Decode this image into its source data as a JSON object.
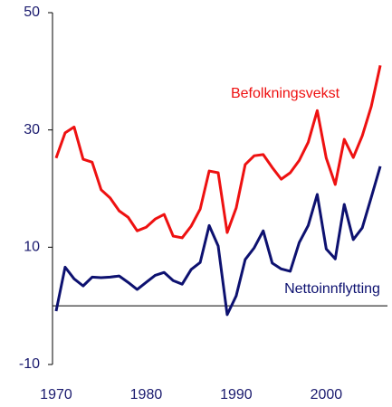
{
  "chart_data": {
    "type": "line",
    "x": [
      1970,
      1971,
      1972,
      1973,
      1974,
      1975,
      1976,
      1977,
      1978,
      1979,
      1980,
      1981,
      1982,
      1983,
      1984,
      1985,
      1986,
      1987,
      1988,
      1989,
      1990,
      1991,
      1992,
      1993,
      1994,
      1995,
      1996,
      1997,
      1998,
      1999,
      2000,
      2001,
      2002,
      2003,
      2004,
      2005,
      2006
    ],
    "series": [
      {
        "name": "Befolkningsvekst",
        "color": "#ee1111",
        "values": [
          25.2,
          29.5,
          30.5,
          25.0,
          24.5,
          19.8,
          18.4,
          16.2,
          15.1,
          12.8,
          13.4,
          14.8,
          15.6,
          11.9,
          11.6,
          13.6,
          16.5,
          23.0,
          22.7,
          12.5,
          16.7,
          24.1,
          25.6,
          25.8,
          23.6,
          21.6,
          22.7,
          24.8,
          27.9,
          33.3,
          25.2,
          20.7,
          28.4,
          25.3,
          29.0,
          34.0,
          41.0
        ]
      },
      {
        "name": "Nettoinnflytting",
        "color": "#0d1170",
        "values": [
          -0.9,
          6.6,
          4.6,
          3.4,
          4.9,
          4.8,
          4.9,
          5.1,
          4.0,
          2.8,
          4.0,
          5.2,
          5.7,
          4.3,
          3.7,
          6.2,
          7.4,
          13.7,
          10.2,
          -1.5,
          1.7,
          7.9,
          9.9,
          12.8,
          7.3,
          6.3,
          5.9,
          10.8,
          13.7,
          19.0,
          9.7,
          8.0,
          17.3,
          11.3,
          13.3,
          18.5,
          23.8
        ]
      }
    ],
    "xlim": [
      1969.6,
      2006.8
    ],
    "xticks": [
      1970,
      1980,
      1990,
      2000
    ],
    "ylim": [
      -10,
      50
    ],
    "yticks": [
      -10,
      10,
      30,
      50
    ],
    "zero_line": true
  }
}
